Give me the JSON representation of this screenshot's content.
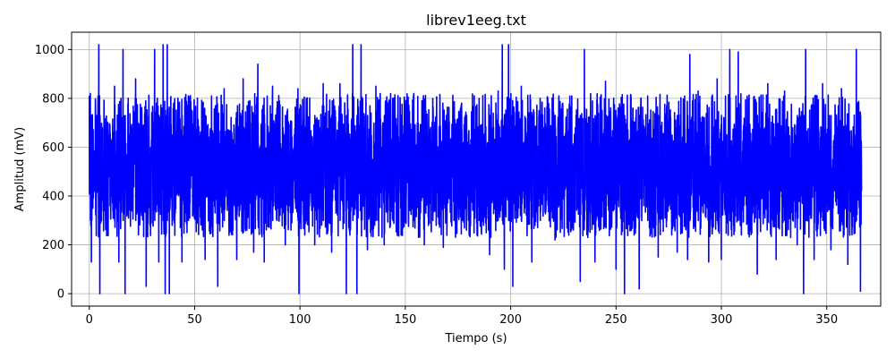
{
  "chart_data": {
    "type": "line",
    "title": "librev1eeg.txt",
    "xlabel": "Tiempo (s)",
    "ylabel": "Amplitud (mV)",
    "xlim": [
      -8.4,
      375.6
    ],
    "ylim": [
      -51,
      1071
    ],
    "xticks": [
      0,
      50,
      100,
      150,
      200,
      250,
      300,
      350
    ],
    "yticks": [
      0,
      200,
      400,
      600,
      800,
      1000
    ],
    "grid": true,
    "legend": "none",
    "series": [
      {
        "color": "#0000ff",
        "x_range": [
          0,
          366.5
        ],
        "baseline": 500,
        "typical_band": [
          330,
          700
        ],
        "peaks": [
          [
            0.5,
            820
          ],
          [
            1,
            130
          ],
          [
            4.5,
            1020
          ],
          [
            5,
            0
          ],
          [
            12,
            850
          ],
          [
            14,
            130
          ],
          [
            16,
            1000
          ],
          [
            17,
            0
          ],
          [
            22,
            880
          ],
          [
            27,
            30
          ],
          [
            31,
            1000
          ],
          [
            33,
            130
          ],
          [
            35,
            1020
          ],
          [
            36,
            0
          ],
          [
            37,
            1020
          ],
          [
            38,
            0
          ],
          [
            40,
            780
          ],
          [
            44,
            130
          ],
          [
            47,
            810
          ],
          [
            55,
            140
          ],
          [
            58,
            810
          ],
          [
            61,
            30
          ],
          [
            64,
            840
          ],
          [
            70,
            140
          ],
          [
            73,
            880
          ],
          [
            78,
            170
          ],
          [
            80,
            940
          ],
          [
            83,
            130
          ],
          [
            87,
            850
          ],
          [
            93,
            200
          ],
          [
            99,
            840
          ],
          [
            99.5,
            0
          ],
          [
            103,
            800
          ],
          [
            107,
            200
          ],
          [
            111,
            860
          ],
          [
            115,
            170
          ],
          [
            119,
            860
          ],
          [
            122,
            0
          ],
          [
            125,
            1020
          ],
          [
            127,
            0
          ],
          [
            129,
            1020
          ],
          [
            132,
            180
          ],
          [
            136,
            850
          ],
          [
            140,
            200
          ],
          [
            144,
            800
          ],
          [
            148,
            240
          ],
          [
            154,
            820
          ],
          [
            159,
            200
          ],
          [
            163,
            800
          ],
          [
            168,
            190
          ],
          [
            173,
            780
          ],
          [
            179,
            260
          ],
          [
            185,
            800
          ],
          [
            190,
            160
          ],
          [
            194,
            830
          ],
          [
            196,
            1020
          ],
          [
            197,
            100
          ],
          [
            199,
            1020
          ],
          [
            201,
            30
          ],
          [
            205,
            850
          ],
          [
            210,
            130
          ],
          [
            214,
            800
          ],
          [
            221,
            220
          ],
          [
            229,
            810
          ],
          [
            233,
            50
          ],
          [
            235,
            1000
          ],
          [
            240,
            130
          ],
          [
            245,
            870
          ],
          [
            250,
            100
          ],
          [
            254,
            0
          ],
          [
            258,
            760
          ],
          [
            261,
            20
          ],
          [
            265,
            810
          ],
          [
            270,
            150
          ],
          [
            274,
            770
          ],
          [
            279,
            170
          ],
          [
            284,
            140
          ],
          [
            285,
            980
          ],
          [
            289,
            830
          ],
          [
            294,
            130
          ],
          [
            298,
            880
          ],
          [
            300,
            140
          ],
          [
            304,
            1000
          ],
          [
            308,
            990
          ],
          [
            313,
            800
          ],
          [
            317,
            80
          ],
          [
            322,
            860
          ],
          [
            326,
            140
          ],
          [
            330,
            830
          ],
          [
            336,
            200
          ],
          [
            339,
            0
          ],
          [
            340,
            1000
          ],
          [
            344,
            140
          ],
          [
            348,
            860
          ],
          [
            352,
            180
          ],
          [
            357,
            840
          ],
          [
            360,
            120
          ],
          [
            364,
            1000
          ],
          [
            366,
            10
          ]
        ]
      }
    ]
  }
}
